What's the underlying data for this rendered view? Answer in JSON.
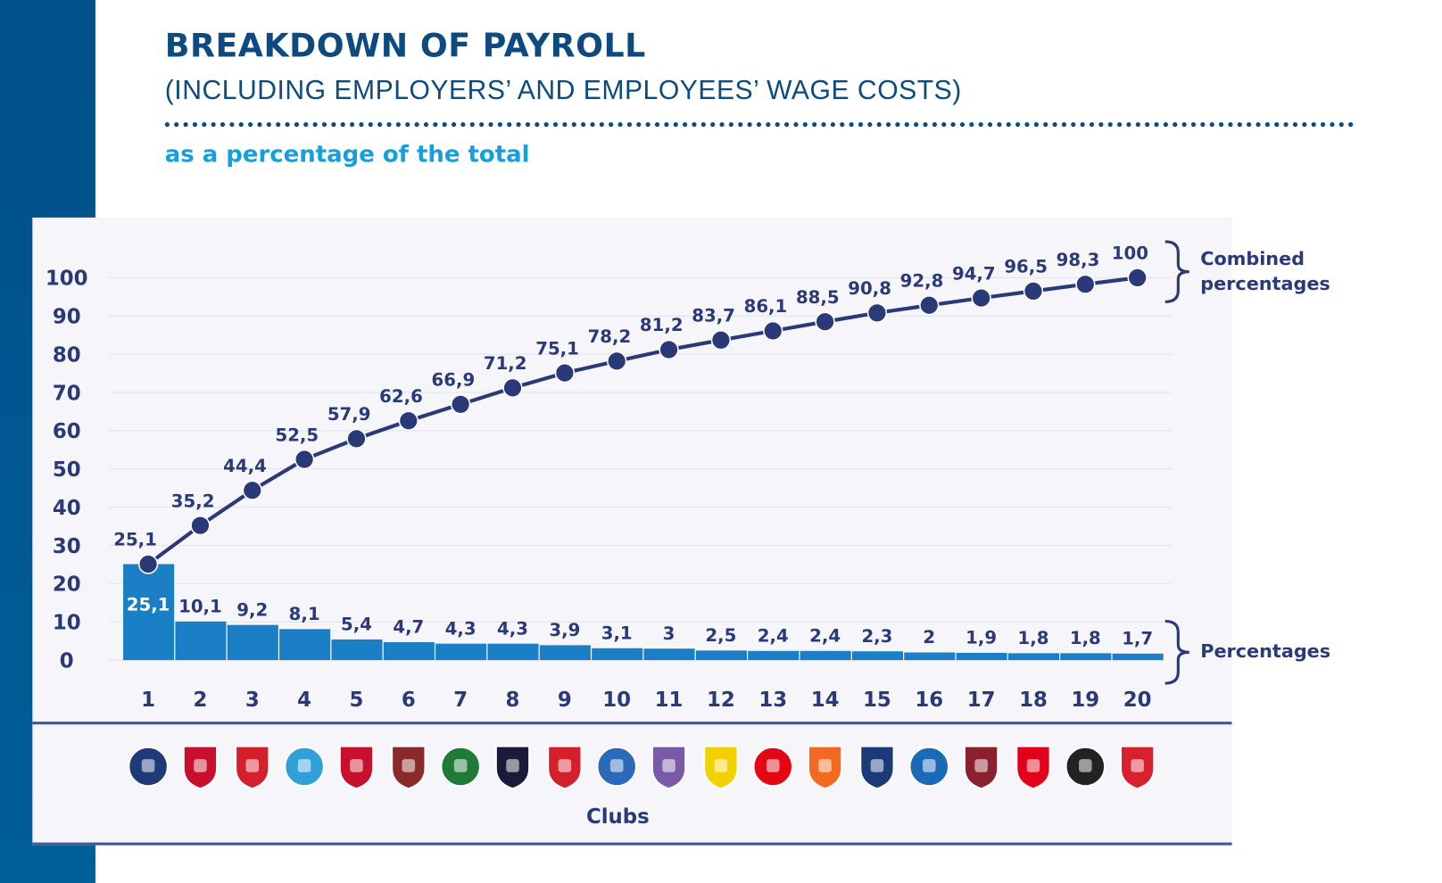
{
  "header": {
    "title": "BREAKDOWN OF PAYROLL",
    "subtitle": "(INCLUDING EMPLOYERS’ AND EMPLOYEES’ WAGE COSTS)",
    "unit_note": "as a percentage of the total"
  },
  "colors": {
    "bar": "#1a7fc4",
    "line": "#2a3a78",
    "accent": "#14a0dc",
    "title": "#0d4a80"
  },
  "chart_data": {
    "type": "bar+line",
    "title": "BREAKDOWN OF PAYROLL",
    "xlabel": "Clubs",
    "ylabel": "",
    "ylim": [
      0,
      100
    ],
    "yticks": [
      "0",
      "10",
      "20",
      "30",
      "40",
      "50",
      "60",
      "70",
      "80",
      "90",
      "100"
    ],
    "categories": [
      "1",
      "2",
      "3",
      "4",
      "5",
      "6",
      "7",
      "8",
      "9",
      "10",
      "11",
      "12",
      "13",
      "14",
      "15",
      "16",
      "17",
      "18",
      "19",
      "20"
    ],
    "series": [
      {
        "name": "Percentages",
        "type": "bar",
        "values": [
          25.1,
          10.1,
          9.2,
          8.1,
          5.4,
          4.7,
          4.3,
          4.3,
          3.9,
          3.1,
          3,
          2.5,
          2.4,
          2.4,
          2.3,
          2,
          1.9,
          1.8,
          1.8,
          1.7
        ],
        "labels": [
          "25,1",
          "10,1",
          "9,2",
          "8,1",
          "5,4",
          "4,7",
          "4,3",
          "4,3",
          "3,9",
          "3,1",
          "3",
          "2,5",
          "2,4",
          "2,4",
          "2,3",
          "2",
          "1,9",
          "1,8",
          "1,8",
          "1,7"
        ]
      },
      {
        "name": "Combined percentages",
        "type": "line",
        "values": [
          25.1,
          35.2,
          44.4,
          52.5,
          57.9,
          62.6,
          66.9,
          71.2,
          75.1,
          78.2,
          81.2,
          83.7,
          86.1,
          88.5,
          90.8,
          92.8,
          94.7,
          96.5,
          98.3,
          100
        ],
        "labels": [
          "25,1",
          "35,2",
          "44,4",
          "52,5",
          "57,9",
          "62,6",
          "66,9",
          "71,2",
          "75,1",
          "78,2",
          "81,2",
          "83,7",
          "86,1",
          "88,5",
          "90,8",
          "92,8",
          "94,7",
          "96,5",
          "98,3",
          "100"
        ]
      }
    ],
    "legend": {
      "combined": [
        "Combined",
        "percentages"
      ],
      "percentages": "Percentages"
    },
    "grid": true,
    "club_logo_colors": [
      "#1e3a78",
      "#c8102e",
      "#d4202c",
      "#2fa0d8",
      "#c8102e",
      "#8a2b2b",
      "#1f7a3a",
      "#1a1a3a",
      "#d4202c",
      "#2a6ab8",
      "#7a5aa8",
      "#f2d100",
      "#e30613",
      "#f26a21",
      "#1a3a78",
      "#1a6ab8",
      "#8a2030",
      "#e2001a",
      "#222222",
      "#d8202e"
    ]
  }
}
